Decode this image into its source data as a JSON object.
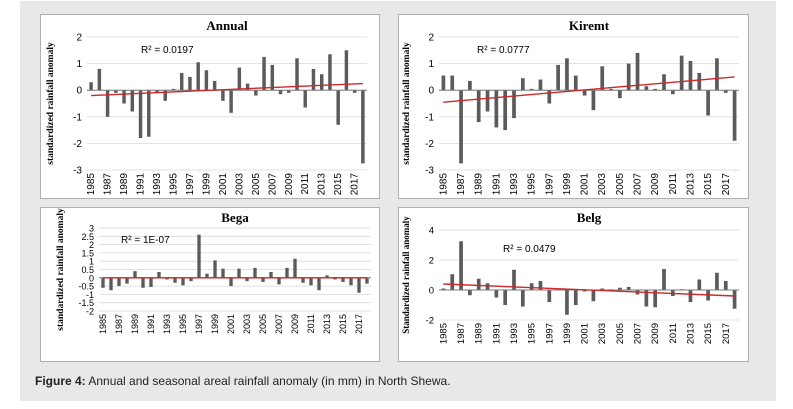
{
  "caption": {
    "label": "Figure 4:",
    "text": " Annual and seasonal areal rainfall anomaly (in mm) in North Shewa."
  },
  "colors": {
    "bar": "#5b5b5b",
    "trend": "#cc2a2a",
    "grid": "#d9d9d9",
    "frame_bg": "#e8e8e8"
  },
  "chart_data": [
    {
      "type": "bar",
      "title": "Annual",
      "ylabel": "standardized rainfall anomaly",
      "ylim": [
        -3,
        2
      ],
      "yticks": [
        2,
        1,
        0,
        -1,
        -2,
        -3
      ],
      "ytick_labels": [
        "2",
        "1",
        "0",
        "-1",
        "-2",
        "-3"
      ],
      "r2": "R² = 0.0197",
      "trend": [
        -0.2,
        0.25
      ],
      "x": [
        1985,
        1986,
        1987,
        1988,
        1989,
        1990,
        1991,
        1992,
        1993,
        1994,
        1995,
        1996,
        1997,
        1998,
        1999,
        2000,
        2001,
        2002,
        2003,
        2004,
        2005,
        2006,
        2007,
        2008,
        2009,
        2010,
        2011,
        2012,
        2013,
        2014,
        2015,
        2016,
        2017,
        2018
      ],
      "values": [
        0.3,
        0.8,
        -1.0,
        -0.1,
        -0.5,
        -0.8,
        -1.8,
        -1.75,
        -0.1,
        -0.4,
        0.05,
        0.65,
        0.5,
        1.05,
        0.75,
        0.35,
        -0.4,
        -0.85,
        0.85,
        0.25,
        -0.2,
        1.25,
        0.95,
        -0.15,
        -0.1,
        1.2,
        -0.65,
        0.8,
        0.6,
        1.35,
        -1.3,
        1.5,
        -0.1,
        -2.75
      ],
      "xtick_labels": [
        "1985",
        "1987",
        "1989",
        "1991",
        "1993",
        "1995",
        "1997",
        "1999",
        "2001",
        "2003",
        "2005",
        "2007",
        "2009",
        "2011",
        "2013",
        "2015",
        "2017"
      ]
    },
    {
      "type": "bar",
      "title": "Kiremt",
      "ylabel": "standardized rainfall anomaly",
      "ylim": [
        -3,
        2
      ],
      "yticks": [
        2,
        1,
        0,
        -1,
        -2,
        -3
      ],
      "ytick_labels": [
        "2",
        "1",
        "0",
        "-1",
        "-2",
        "-3"
      ],
      "r2": "R² = 0.0777",
      "trend": [
        -0.45,
        0.5
      ],
      "x": [
        1985,
        1986,
        1987,
        1988,
        1989,
        1990,
        1991,
        1992,
        1993,
        1994,
        1995,
        1996,
        1997,
        1998,
        1999,
        2000,
        2001,
        2002,
        2003,
        2004,
        2005,
        2006,
        2007,
        2008,
        2009,
        2010,
        2011,
        2012,
        2013,
        2014,
        2015,
        2016,
        2017,
        2018
      ],
      "values": [
        0.55,
        0.55,
        -2.75,
        0.35,
        -1.2,
        -0.8,
        -1.4,
        -1.5,
        -1.05,
        0.45,
        0.05,
        0.4,
        -0.5,
        0.95,
        1.2,
        0.55,
        -0.2,
        -0.75,
        0.9,
        0.05,
        -0.3,
        1.0,
        1.4,
        0.15,
        0.05,
        0.6,
        -0.15,
        1.3,
        1.1,
        0.65,
        -0.95,
        1.2,
        -0.1,
        -1.9
      ],
      "xtick_labels": [
        "1985",
        "1987",
        "1989",
        "1991",
        "1993",
        "1995",
        "1997",
        "1999",
        "2001",
        "2003",
        "2005",
        "2007",
        "2009",
        "2011",
        "2013",
        "2015",
        "2017"
      ]
    },
    {
      "type": "bar",
      "title": "Bega",
      "ylabel": "standardized rainfall anomaly",
      "ylim": [
        -2,
        3
      ],
      "yticks": [
        3,
        2.5,
        2,
        1.5,
        1,
        0.5,
        0,
        -0.5,
        -1,
        -1.5,
        -2
      ],
      "ytick_labels": [
        "3",
        "2.5",
        "2",
        "1.5",
        "1",
        "0.5",
        "0",
        "-0.5",
        "-1",
        "-1.5",
        "-2"
      ],
      "r2": "R² = 1E-07",
      "trend": [
        0.0,
        0.0
      ],
      "x": [
        1985,
        1986,
        1987,
        1988,
        1989,
        1990,
        1991,
        1992,
        1993,
        1994,
        1995,
        1996,
        1997,
        1998,
        1999,
        2000,
        2001,
        2002,
        2003,
        2004,
        2005,
        2006,
        2007,
        2008,
        2009,
        2010,
        2011,
        2012,
        2013,
        2014,
        2015,
        2016,
        2017,
        2018
      ],
      "values": [
        -0.6,
        -0.75,
        -0.5,
        -0.35,
        0.4,
        -0.6,
        -0.55,
        0.35,
        -0.1,
        -0.3,
        -0.45,
        -0.2,
        2.6,
        0.25,
        1.05,
        0.55,
        -0.5,
        0.55,
        -0.2,
        0.6,
        -0.25,
        0.35,
        -0.4,
        0.6,
        1.15,
        -0.3,
        -0.45,
        -0.75,
        0.15,
        -0.1,
        -0.25,
        -0.45,
        -0.9,
        -0.35
      ],
      "xtick_labels": [
        "1985",
        "1987",
        "1989",
        "1991",
        "1993",
        "1995",
        "1997",
        "1999",
        "2001",
        "2003",
        "2005",
        "2007",
        "2009",
        "2011",
        "2013",
        "2015",
        "2017"
      ]
    },
    {
      "type": "bar",
      "title": "Belg",
      "ylabel": "Standardized rainfall anomaly",
      "ylim": [
        -2,
        4
      ],
      "yticks": [
        4,
        2,
        0,
        -2
      ],
      "ytick_labels": [
        "4",
        "2",
        "0",
        "-2"
      ],
      "r2": "R² = 0.0479",
      "trend": [
        0.4,
        -0.4
      ],
      "x": [
        1985,
        1986,
        1987,
        1988,
        1989,
        1990,
        1991,
        1992,
        1993,
        1994,
        1995,
        1996,
        1997,
        1998,
        1999,
        2000,
        2001,
        2002,
        2003,
        2004,
        2005,
        2006,
        2007,
        2008,
        2009,
        2010,
        2011,
        2012,
        2013,
        2014,
        2015,
        2016,
        2017,
        2018
      ],
      "values": [
        0.1,
        1.05,
        3.25,
        -0.35,
        0.75,
        0.45,
        -0.5,
        -1.0,
        1.35,
        -1.1,
        0.45,
        0.6,
        -0.8,
        0.05,
        -1.65,
        -1.0,
        -0.1,
        -0.75,
        0.1,
        0.05,
        0.15,
        0.2,
        -0.3,
        -1.1,
        -1.15,
        1.4,
        -0.4,
        0.05,
        -0.8,
        0.7,
        -0.7,
        1.15,
        0.6,
        -1.25
      ],
      "xtick_labels": [
        "1985",
        "1987",
        "1989",
        "1991",
        "1993",
        "1995",
        "1997",
        "1999",
        "2001",
        "2003",
        "2005",
        "2007",
        "2009",
        "2011",
        "2013",
        "2015",
        "2017"
      ]
    }
  ]
}
